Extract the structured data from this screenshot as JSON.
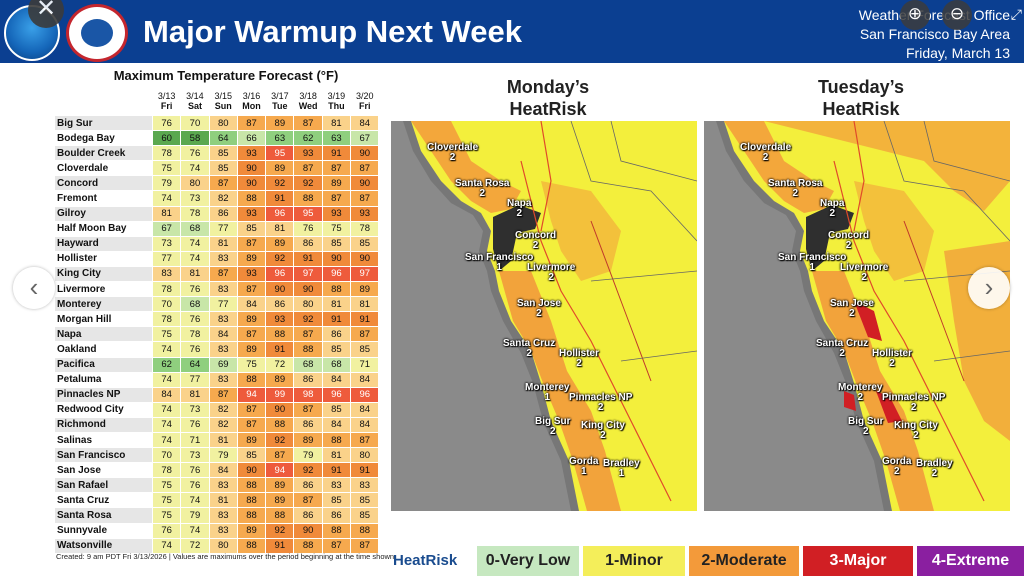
{
  "header": {
    "title": "Major Warmup Next Week",
    "office_line1": "Weather Forecast Office",
    "office_line2": "San Francisco Bay Area",
    "office_line3": "Friday, March 13"
  },
  "viewer": {
    "close_glyph": "✕",
    "zoom_in_glyph": "⊕",
    "zoom_out_glyph": "⊖",
    "fullscreen_glyph": "⤢",
    "prev_glyph": "‹",
    "next_glyph": "›"
  },
  "table": {
    "title": "Maximum Temperature Forecast (°F)",
    "dates": [
      "3/13",
      "3/14",
      "3/15",
      "3/16",
      "3/17",
      "3/18",
      "3/19",
      "3/20"
    ],
    "days": [
      "Fri",
      "Sat",
      "Sun",
      "Mon",
      "Tue",
      "Wed",
      "Thu",
      "Fri"
    ],
    "rows": [
      {
        "loc": "Big Sur",
        "vals": [
          76,
          70,
          80,
          87,
          89,
          87,
          81,
          84
        ]
      },
      {
        "loc": "Bodega Bay",
        "vals": [
          60,
          58,
          64,
          66,
          63,
          62,
          63,
          67
        ]
      },
      {
        "loc": "Boulder Creek",
        "vals": [
          78,
          76,
          85,
          93,
          95,
          93,
          91,
          90
        ]
      },
      {
        "loc": "Cloverdale",
        "vals": [
          75,
          74,
          85,
          90,
          89,
          87,
          87,
          87
        ]
      },
      {
        "loc": "Concord",
        "vals": [
          79,
          80,
          87,
          90,
          92,
          92,
          89,
          90
        ]
      },
      {
        "loc": "Fremont",
        "vals": [
          74,
          73,
          82,
          88,
          91,
          88,
          87,
          87
        ]
      },
      {
        "loc": "Gilroy",
        "vals": [
          81,
          78,
          86,
          93,
          96,
          95,
          93,
          93
        ]
      },
      {
        "loc": "Half Moon Bay",
        "vals": [
          67,
          68,
          77,
          85,
          81,
          76,
          75,
          78
        ]
      },
      {
        "loc": "Hayward",
        "vals": [
          73,
          74,
          81,
          87,
          89,
          86,
          85,
          85
        ]
      },
      {
        "loc": "Hollister",
        "vals": [
          77,
          74,
          83,
          89,
          92,
          91,
          90,
          90
        ]
      },
      {
        "loc": "King City",
        "vals": [
          83,
          81,
          87,
          93,
          96,
          97,
          96,
          97
        ]
      },
      {
        "loc": "Livermore",
        "vals": [
          78,
          76,
          83,
          87,
          90,
          90,
          88,
          89
        ]
      },
      {
        "loc": "Monterey",
        "vals": [
          70,
          68,
          77,
          84,
          86,
          80,
          81,
          81
        ]
      },
      {
        "loc": "Morgan Hill",
        "vals": [
          78,
          76,
          83,
          89,
          93,
          92,
          91,
          91
        ]
      },
      {
        "loc": "Napa",
        "vals": [
          75,
          78,
          84,
          87,
          88,
          87,
          86,
          87
        ]
      },
      {
        "loc": "Oakland",
        "vals": [
          74,
          76,
          83,
          89,
          91,
          88,
          85,
          85
        ]
      },
      {
        "loc": "Pacifica",
        "vals": [
          62,
          64,
          69,
          75,
          72,
          68,
          68,
          71
        ]
      },
      {
        "loc": "Petaluma",
        "vals": [
          74,
          77,
          83,
          88,
          89,
          86,
          84,
          84
        ]
      },
      {
        "loc": "Pinnacles NP",
        "vals": [
          84,
          81,
          87,
          94,
          99,
          98,
          96,
          96
        ]
      },
      {
        "loc": "Redwood City",
        "vals": [
          74,
          73,
          82,
          87,
          90,
          87,
          85,
          84
        ]
      },
      {
        "loc": "Richmond",
        "vals": [
          74,
          76,
          82,
          87,
          88,
          86,
          84,
          84
        ]
      },
      {
        "loc": "Salinas",
        "vals": [
          74,
          71,
          81,
          89,
          92,
          89,
          88,
          87
        ]
      },
      {
        "loc": "San Francisco",
        "vals": [
          70,
          73,
          79,
          85,
          87,
          79,
          81,
          80
        ]
      },
      {
        "loc": "San Jose",
        "vals": [
          78,
          76,
          84,
          90,
          94,
          92,
          91,
          91
        ]
      },
      {
        "loc": "San Rafael",
        "vals": [
          75,
          76,
          83,
          88,
          89,
          86,
          83,
          83
        ]
      },
      {
        "loc": "Santa Cruz",
        "vals": [
          75,
          74,
          81,
          88,
          89,
          87,
          85,
          85
        ]
      },
      {
        "loc": "Santa Rosa",
        "vals": [
          75,
          79,
          83,
          88,
          88,
          86,
          86,
          85
        ]
      },
      {
        "loc": "Sunnyvale",
        "vals": [
          76,
          74,
          83,
          89,
          92,
          90,
          88,
          88
        ]
      },
      {
        "loc": "Watsonville",
        "vals": [
          74,
          72,
          80,
          88,
          91,
          88,
          87,
          87
        ]
      }
    ],
    "footnote": "Created: 9 am PDT Fri 3/13/2026  |  Values are maximums over the period beginning at the time shown."
  },
  "maps": [
    {
      "title_line1": "Monday’s",
      "title_line2": "HeatRisk",
      "cities": [
        {
          "name": "Cloverdale",
          "val": "2"
        },
        {
          "name": "Santa Rosa",
          "val": "2"
        },
        {
          "name": "Napa",
          "val": "2"
        },
        {
          "name": "Concord",
          "val": "2"
        },
        {
          "name": "San Francisco",
          "val": "1"
        },
        {
          "name": "Livermore",
          "val": "2"
        },
        {
          "name": "San Jose",
          "val": "2"
        },
        {
          "name": "Santa Cruz",
          "val": "2"
        },
        {
          "name": "Hollister",
          "val": "2"
        },
        {
          "name": "Monterey",
          "val": "1"
        },
        {
          "name": "Pinnacles NP",
          "val": "2"
        },
        {
          "name": "Big Sur",
          "val": "2"
        },
        {
          "name": "King City",
          "val": "2"
        },
        {
          "name": "Gorda",
          "val": "1"
        },
        {
          "name": "Bradley",
          "val": "1"
        }
      ]
    },
    {
      "title_line1": "Tuesday’s",
      "title_line2": "HeatRisk",
      "cities": [
        {
          "name": "Cloverdale",
          "val": "2"
        },
        {
          "name": "Santa Rosa",
          "val": "2"
        },
        {
          "name": "Napa",
          "val": "2"
        },
        {
          "name": "Concord",
          "val": "2"
        },
        {
          "name": "San Francisco",
          "val": "1"
        },
        {
          "name": "Livermore",
          "val": "2"
        },
        {
          "name": "San Jose",
          "val": "2"
        },
        {
          "name": "Santa Cruz",
          "val": "2"
        },
        {
          "name": "Hollister",
          "val": "2"
        },
        {
          "name": "Monterey",
          "val": "2"
        },
        {
          "name": "Pinnacles NP",
          "val": "2"
        },
        {
          "name": "Big Sur",
          "val": "2"
        },
        {
          "name": "King City",
          "val": "2"
        },
        {
          "name": "Gorda",
          "val": "2"
        },
        {
          "name": "Bradley",
          "val": "2"
        }
      ]
    }
  ],
  "legend": {
    "label": "HeatRisk",
    "items": [
      {
        "text": "0-Very Low",
        "color": "#c6e8c0"
      },
      {
        "text": "1-Minor",
        "color": "#f4ee5a"
      },
      {
        "text": "2-Moderate",
        "color": "#f39a3a"
      },
      {
        "text": "3-Major",
        "color": "#d11f24"
      },
      {
        "text": "4-Extreme",
        "color": "#8a1fa0"
      }
    ]
  }
}
